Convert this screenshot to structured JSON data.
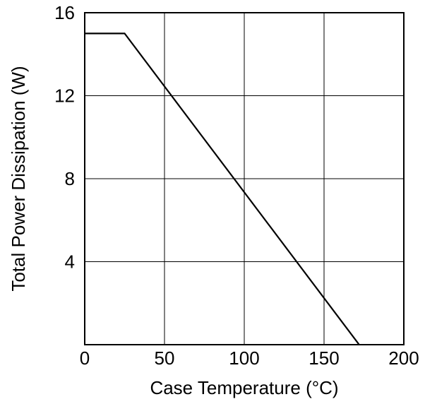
{
  "chart_data": {
    "type": "line",
    "title": "",
    "xlabel": "Case Temperature (°C)",
    "ylabel": "Total Power Dissipation (W)",
    "xlim": [
      0,
      200
    ],
    "ylim": [
      0,
      16
    ],
    "x_ticks": [
      0,
      50,
      100,
      150,
      200
    ],
    "x_tick_labels": [
      "0",
      "50",
      "100",
      "150",
      "200"
    ],
    "y_ticks": [
      4,
      8,
      12,
      16
    ],
    "y_tick_labels": [
      "4",
      "8",
      "12",
      "16"
    ],
    "grid": true,
    "series": [
      {
        "x": [
          0,
          25,
          172
        ],
        "y": [
          15.0,
          15.0,
          0
        ]
      }
    ],
    "colors": {
      "line": "#000000",
      "grid": "#000000",
      "axis": "#000000"
    }
  }
}
